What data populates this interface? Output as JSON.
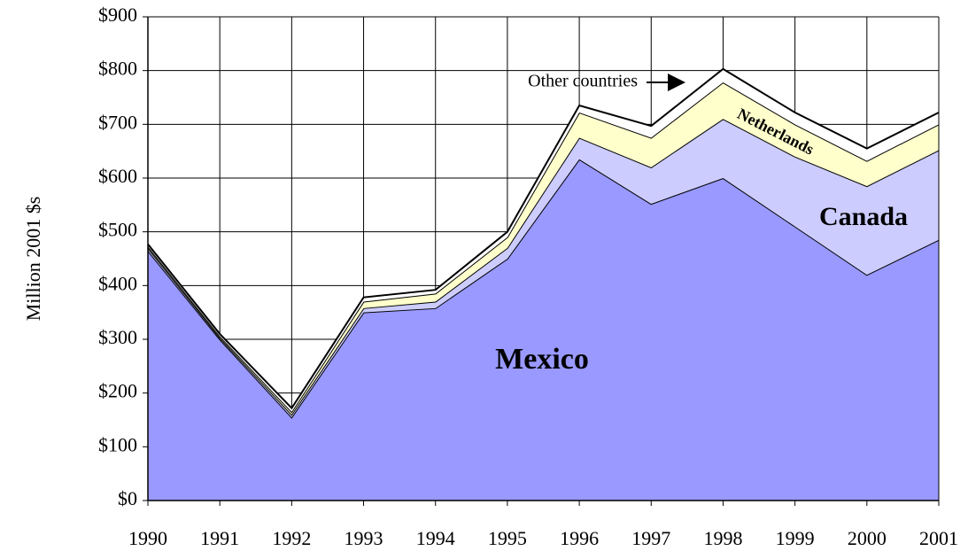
{
  "chart_data": {
    "type": "stacked-area",
    "y_label": "Million 2001 $s",
    "categories": [
      "1990",
      "1991",
      "1992",
      "1993",
      "1994",
      "1995",
      "1996",
      "1997",
      "1998",
      "1999",
      "2000",
      "2001"
    ],
    "series": [
      {
        "name": "Mexico",
        "color": "#9999ff",
        "values": [
          465,
          300,
          155,
          350,
          358,
          450,
          635,
          552,
          600,
          510,
          420,
          485
        ]
      },
      {
        "name": "Canada",
        "color": "#ccccff",
        "values": [
          5,
          3,
          5,
          8,
          12,
          20,
          40,
          68,
          110,
          130,
          165,
          167
        ]
      },
      {
        "name": "Netherlands",
        "color": "#ffffcc",
        "values": [
          3,
          3,
          5,
          12,
          15,
          20,
          47,
          55,
          68,
          60,
          47,
          48
        ]
      },
      {
        "name": "Other countries",
        "color": "#ffffff",
        "values": [
          4,
          4,
          7,
          8,
          7,
          10,
          13,
          22,
          25,
          22,
          23,
          22
        ]
      }
    ],
    "ylim": [
      0,
      900
    ],
    "yticks": [
      {
        "value": 0,
        "label": "$0"
      },
      {
        "value": 100,
        "label": "$100"
      },
      {
        "value": 200,
        "label": "$200"
      },
      {
        "value": 300,
        "label": "$300"
      },
      {
        "value": 400,
        "label": "$400"
      },
      {
        "value": 500,
        "label": "$500"
      },
      {
        "value": 600,
        "label": "$600"
      },
      {
        "value": 700,
        "label": "$700"
      },
      {
        "value": 800,
        "label": "$800"
      },
      {
        "value": 900,
        "label": "$900"
      }
    ],
    "grid": true
  }
}
